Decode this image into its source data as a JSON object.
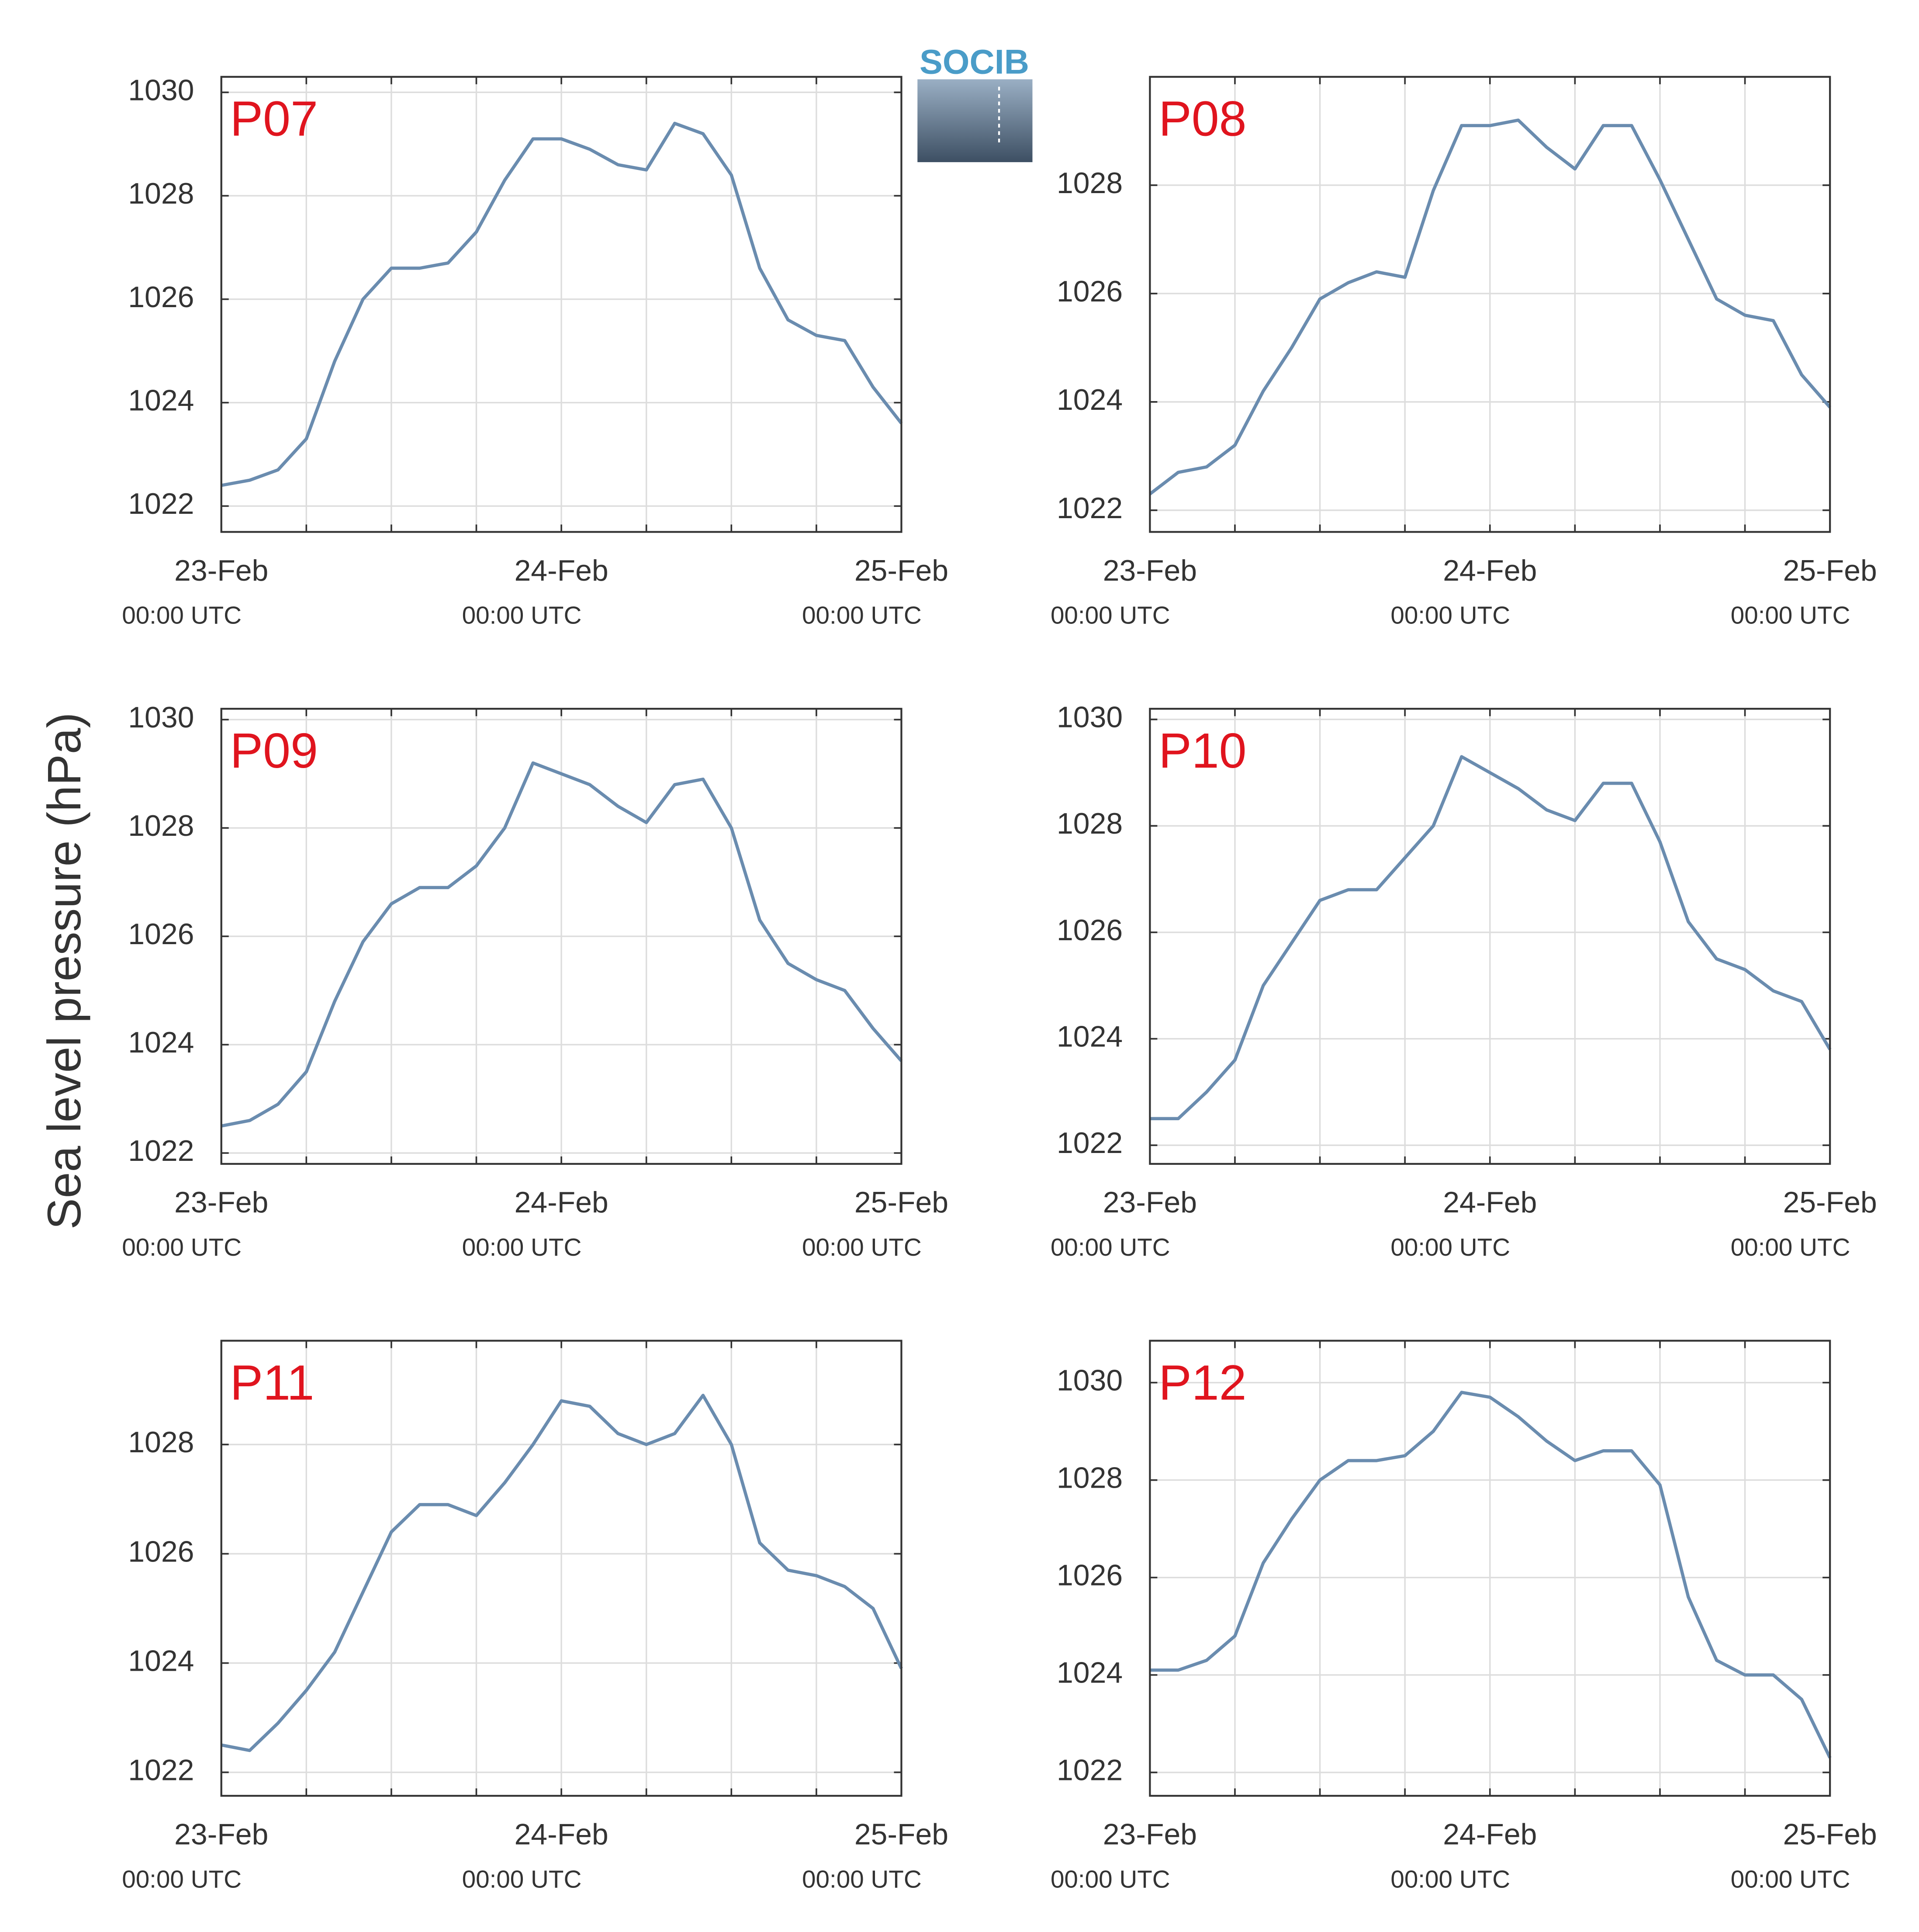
{
  "ylabel": "Sea level pressure (hPa)",
  "logo": "SOCIB",
  "chart_data": [
    {
      "type": "line",
      "title": "P07",
      "x": [
        0,
        2,
        4,
        6,
        8,
        10,
        12,
        14,
        16,
        18,
        20,
        22,
        24,
        26,
        28,
        30,
        32,
        34,
        36,
        38,
        40,
        42,
        44,
        46,
        48
      ],
      "series": [
        {
          "color": "#6a8caf",
          "values": [
            1022.4,
            1022.5,
            1022.7,
            1023.3,
            1024.8,
            1026.0,
            1026.6,
            1026.6,
            1026.7,
            1027.3,
            1028.3,
            1029.1,
            1029.1,
            1028.9,
            1028.6,
            1028.5,
            1029.4,
            1029.2,
            1028.4,
            1026.6,
            1025.6,
            1025.3,
            1025.2,
            1024.3,
            1023.6
          ]
        }
      ],
      "xlim": [
        0,
        48
      ],
      "xticks": [
        {
          "value": 0,
          "label": "23-Feb",
          "sublabel": "00:00 UTC"
        },
        {
          "value": 24,
          "label": "24-Feb",
          "sublabel": "00:00 UTC"
        },
        {
          "value": 48,
          "label": "25-Feb",
          "sublabel": "00:00 UTC"
        }
      ],
      "xminorticks": [
        6,
        12,
        18,
        30,
        36,
        42
      ],
      "ylim": [
        1021.5,
        1030.3
      ],
      "yticks": [
        1022,
        1024,
        1026,
        1028,
        1030
      ],
      "grid": true
    },
    {
      "type": "line",
      "title": "P08",
      "x": [
        0,
        2,
        4,
        6,
        8,
        10,
        12,
        14,
        16,
        18,
        20,
        22,
        24,
        26,
        28,
        30,
        32,
        34,
        36,
        38,
        40,
        42,
        44,
        46,
        48
      ],
      "series": [
        {
          "color": "#6a8caf",
          "values": [
            1022.3,
            1022.7,
            1022.8,
            1023.2,
            1024.2,
            1025.0,
            1025.9,
            1026.2,
            1026.4,
            1026.3,
            1027.9,
            1029.1,
            1029.1,
            1029.2,
            1028.7,
            1028.3,
            1029.1,
            1029.1,
            1028.1,
            1027.0,
            1025.9,
            1025.6,
            1025.5,
            1024.5,
            1023.9
          ]
        }
      ],
      "xlim": [
        0,
        48
      ],
      "xticks": [
        {
          "value": 0,
          "label": "23-Feb",
          "sublabel": "00:00 UTC"
        },
        {
          "value": 24,
          "label": "24-Feb",
          "sublabel": "00:00 UTC"
        },
        {
          "value": 48,
          "label": "25-Feb",
          "sublabel": "00:00 UTC"
        }
      ],
      "xminorticks": [
        6,
        12,
        18,
        30,
        36,
        42
      ],
      "ylim": [
        1021.6,
        1030.0
      ],
      "yticks": [
        1022,
        1024,
        1026,
        1028
      ],
      "grid": true
    },
    {
      "type": "line",
      "title": "P09",
      "x": [
        0,
        2,
        4,
        6,
        8,
        10,
        12,
        14,
        16,
        18,
        20,
        22,
        24,
        26,
        28,
        30,
        32,
        34,
        36,
        38,
        40,
        42,
        44,
        46,
        48
      ],
      "series": [
        {
          "color": "#6a8caf",
          "values": [
            1022.5,
            1022.6,
            1022.9,
            1023.5,
            1024.8,
            1025.9,
            1026.6,
            1026.9,
            1026.9,
            1027.3,
            1028.0,
            1029.2,
            1029.0,
            1028.8,
            1028.4,
            1028.1,
            1028.8,
            1028.9,
            1028.0,
            1026.3,
            1025.5,
            1025.2,
            1025.0,
            1024.3,
            1023.7
          ]
        }
      ],
      "xlim": [
        0,
        48
      ],
      "xticks": [
        {
          "value": 0,
          "label": "23-Feb",
          "sublabel": "00:00 UTC"
        },
        {
          "value": 24,
          "label": "24-Feb",
          "sublabel": "00:00 UTC"
        },
        {
          "value": 48,
          "label": "25-Feb",
          "sublabel": "00:00 UTC"
        }
      ],
      "xminorticks": [
        6,
        12,
        18,
        30,
        36,
        42
      ],
      "ylim": [
        1021.8,
        1030.2
      ],
      "yticks": [
        1022,
        1024,
        1026,
        1028,
        1030
      ],
      "grid": true
    },
    {
      "type": "line",
      "title": "P10",
      "x": [
        0,
        2,
        4,
        6,
        8,
        10,
        12,
        14,
        16,
        18,
        20,
        22,
        24,
        26,
        28,
        30,
        32,
        34,
        36,
        38,
        40,
        42,
        44,
        46,
        48
      ],
      "series": [
        {
          "color": "#6a8caf",
          "values": [
            1022.5,
            1022.5,
            1023.0,
            1023.6,
            1025.0,
            1025.8,
            1026.6,
            1026.8,
            1026.8,
            1027.4,
            1028.0,
            1029.3,
            1029.0,
            1028.7,
            1028.3,
            1028.1,
            1028.8,
            1028.8,
            1027.7,
            1026.2,
            1025.5,
            1025.3,
            1024.9,
            1024.7,
            1023.8
          ]
        }
      ],
      "xlim": [
        0,
        48
      ],
      "xticks": [
        {
          "value": 0,
          "label": "23-Feb",
          "sublabel": "00:00 UTC"
        },
        {
          "value": 24,
          "label": "24-Feb",
          "sublabel": "00:00 UTC"
        },
        {
          "value": 48,
          "label": "25-Feb",
          "sublabel": "00:00 UTC"
        }
      ],
      "xminorticks": [
        6,
        12,
        18,
        30,
        36,
        42
      ],
      "ylim": [
        1021.65,
        1030.2
      ],
      "yticks": [
        1022,
        1024,
        1026,
        1028,
        1030
      ],
      "grid": true
    },
    {
      "type": "line",
      "title": "P11",
      "x": [
        0,
        2,
        4,
        6,
        8,
        10,
        12,
        14,
        16,
        18,
        20,
        22,
        24,
        26,
        28,
        30,
        32,
        34,
        36,
        38,
        40,
        42,
        44,
        46,
        48
      ],
      "series": [
        {
          "color": "#6a8caf",
          "values": [
            1022.5,
            1022.4,
            1022.9,
            1023.5,
            1024.2,
            1025.3,
            1026.4,
            1026.9,
            1026.9,
            1026.7,
            1027.3,
            1028.0,
            1028.8,
            1028.7,
            1028.2,
            1028.0,
            1028.2,
            1028.9,
            1028.0,
            1026.2,
            1025.7,
            1025.6,
            1025.4,
            1025.0,
            1023.9
          ]
        }
      ],
      "xlim": [
        0,
        48
      ],
      "xticks": [
        {
          "value": 0,
          "label": "23-Feb",
          "sublabel": "00:00 UTC"
        },
        {
          "value": 24,
          "label": "24-Feb",
          "sublabel": "00:00 UTC"
        },
        {
          "value": 48,
          "label": "25-Feb",
          "sublabel": "00:00 UTC"
        }
      ],
      "xminorticks": [
        6,
        12,
        18,
        30,
        36,
        42
      ],
      "ylim": [
        1021.57,
        1029.9
      ],
      "yticks": [
        1022,
        1024,
        1026,
        1028
      ],
      "grid": true
    },
    {
      "type": "line",
      "title": "P12",
      "x": [
        0,
        2,
        4,
        6,
        8,
        10,
        12,
        14,
        16,
        18,
        20,
        22,
        24,
        26,
        28,
        30,
        32,
        34,
        36,
        38,
        40,
        42,
        44,
        46,
        48
      ],
      "series": [
        {
          "color": "#6a8caf",
          "values": [
            1024.1,
            1024.1,
            1024.3,
            1024.8,
            1026.3,
            1027.2,
            1028.0,
            1028.4,
            1028.4,
            1028.5,
            1029.0,
            1029.8,
            1029.7,
            1029.3,
            1028.8,
            1028.4,
            1028.6,
            1028.6,
            1027.9,
            1025.6,
            1024.3,
            1024.0,
            1024.0,
            1023.5,
            1022.3
          ]
        }
      ],
      "xlim": [
        0,
        48
      ],
      "xticks": [
        {
          "value": 0,
          "label": "23-Feb",
          "sublabel": "00:00 UTC"
        },
        {
          "value": 24,
          "label": "24-Feb",
          "sublabel": "00:00 UTC"
        },
        {
          "value": 48,
          "label": "25-Feb",
          "sublabel": "00:00 UTC"
        }
      ],
      "xminorticks": [
        6,
        12,
        18,
        30,
        36,
        42
      ],
      "ylim": [
        1021.52,
        1030.86
      ],
      "yticks": [
        1022,
        1024,
        1026,
        1028,
        1030
      ],
      "grid": true
    }
  ]
}
